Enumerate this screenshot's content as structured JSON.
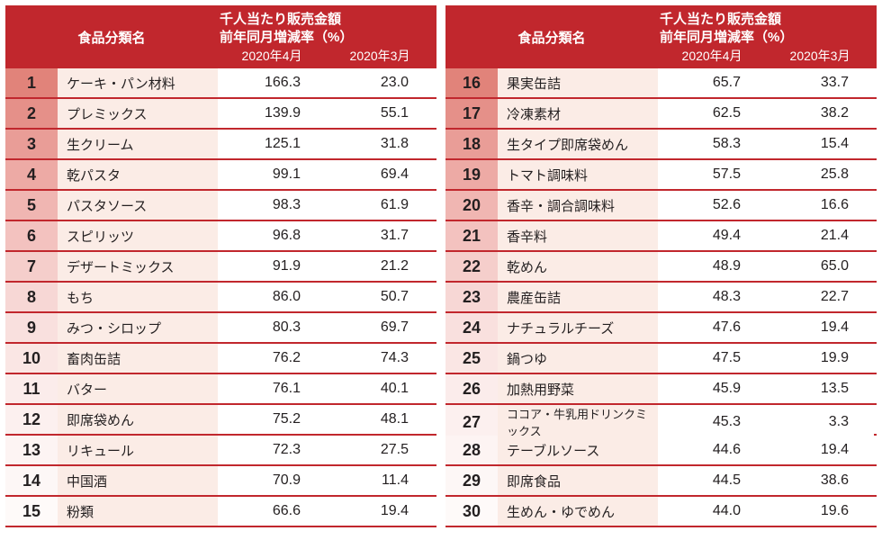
{
  "header": {
    "category_label": "食品分類名",
    "metric_line1": "千人当たり販売金額",
    "metric_line2": "前年同月増減率（%）",
    "month_a": "2020年4月",
    "month_b": "2020年3月"
  },
  "colors": {
    "header_bg": "#c1272d",
    "row_border": "#c1272d",
    "rank_shades": [
      "#e1837a",
      "#e59089",
      "#e99d97",
      "#edaaa5",
      "#f0b6b2",
      "#f3c2bf",
      "#f5cecb",
      "#f7d7d5",
      "#f9e0de",
      "#fae6e4",
      "#fbeceb",
      "#fcf0ef",
      "#fdf4f3",
      "#fdf7f6",
      "#fefaf9"
    ],
    "name_bg": "#fbece6",
    "val_bg": "#ffffff"
  },
  "left": [
    {
      "rank": "1",
      "name": "ケーキ・パン材料",
      "a": "166.3",
      "b": "23.0"
    },
    {
      "rank": "2",
      "name": "プレミックス",
      "a": "139.9",
      "b": "55.1"
    },
    {
      "rank": "3",
      "name": "生クリーム",
      "a": "125.1",
      "b": "31.8"
    },
    {
      "rank": "4",
      "name": "乾パスタ",
      "a": "99.1",
      "b": "69.4"
    },
    {
      "rank": "5",
      "name": "パスタソース",
      "a": "98.3",
      "b": "61.9"
    },
    {
      "rank": "6",
      "name": "スピリッツ",
      "a": "96.8",
      "b": "31.7"
    },
    {
      "rank": "7",
      "name": "デザートミックス",
      "a": "91.9",
      "b": "21.2"
    },
    {
      "rank": "8",
      "name": "もち",
      "a": "86.0",
      "b": "50.7"
    },
    {
      "rank": "9",
      "name": "みつ・シロップ",
      "a": "80.3",
      "b": "69.7"
    },
    {
      "rank": "10",
      "name": "畜肉缶詰",
      "a": "76.2",
      "b": "74.3"
    },
    {
      "rank": "11",
      "name": "バター",
      "a": "76.1",
      "b": "40.1"
    },
    {
      "rank": "12",
      "name": "即席袋めん",
      "a": "75.2",
      "b": "48.1"
    },
    {
      "rank": "13",
      "name": "リキュール",
      "a": "72.3",
      "b": "27.5"
    },
    {
      "rank": "14",
      "name": "中国酒",
      "a": "70.9",
      "b": "11.4"
    },
    {
      "rank": "15",
      "name": "粉類",
      "a": "66.6",
      "b": "19.4"
    }
  ],
  "right": [
    {
      "rank": "16",
      "name": "果実缶詰",
      "a": "65.7",
      "b": "33.7"
    },
    {
      "rank": "17",
      "name": "冷凍素材",
      "a": "62.5",
      "b": "38.2"
    },
    {
      "rank": "18",
      "name": "生タイプ即席袋めん",
      "a": "58.3",
      "b": "15.4"
    },
    {
      "rank": "19",
      "name": "トマト調味料",
      "a": "57.5",
      "b": "25.8"
    },
    {
      "rank": "20",
      "name": "香辛・調合調味料",
      "a": "52.6",
      "b": "16.6"
    },
    {
      "rank": "21",
      "name": "香辛料",
      "a": "49.4",
      "b": "21.4"
    },
    {
      "rank": "22",
      "name": "乾めん",
      "a": "48.9",
      "b": "65.0"
    },
    {
      "rank": "23",
      "name": "農産缶詰",
      "a": "48.3",
      "b": "22.7"
    },
    {
      "rank": "24",
      "name": "ナチュラルチーズ",
      "a": "47.6",
      "b": "19.4"
    },
    {
      "rank": "25",
      "name": "鍋つゆ",
      "a": "47.5",
      "b": "19.9"
    },
    {
      "rank": "26",
      "name": "加熱用野菜",
      "a": "45.9",
      "b": "13.5"
    },
    {
      "rank": "27",
      "name": "ココア・牛乳用ドリンクミックス",
      "a": "45.3",
      "b": "3.3"
    },
    {
      "rank": "28",
      "name": "テーブルソース",
      "a": "44.6",
      "b": "19.4"
    },
    {
      "rank": "29",
      "name": "即席食品",
      "a": "44.5",
      "b": "38.6"
    },
    {
      "rank": "30",
      "name": "生めん・ゆでめん",
      "a": "44.0",
      "b": "19.6"
    }
  ]
}
